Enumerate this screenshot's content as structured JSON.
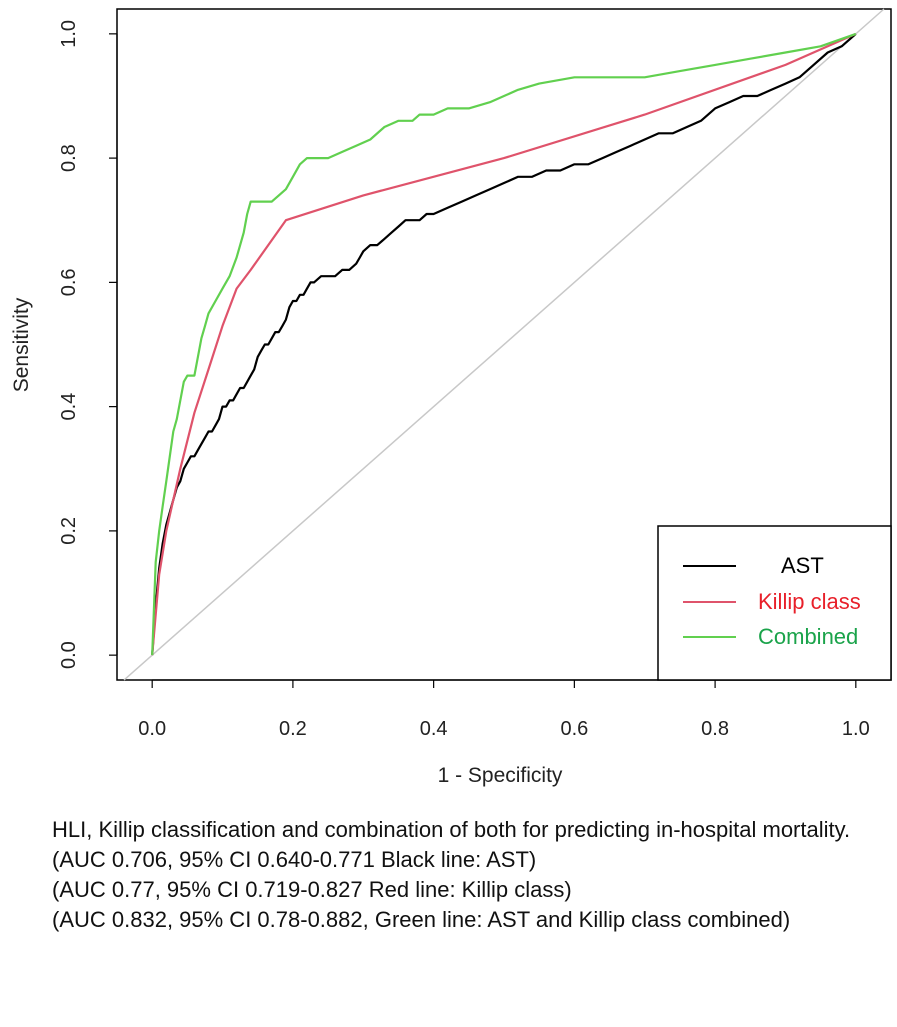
{
  "chart_data": {
    "type": "line",
    "title": "",
    "xlabel": "1 - Specificity",
    "ylabel": "Sensitivity",
    "xlim": [
      -0.05,
      1.05
    ],
    "ylim": [
      -0.04,
      1.04
    ],
    "x_ticks": [
      0.0,
      0.2,
      0.4,
      0.6,
      0.8,
      1.0
    ],
    "y_ticks": [
      0.0,
      0.2,
      0.4,
      0.6,
      0.8,
      1.0
    ],
    "x_tick_labels": [
      "0.0",
      "0.2",
      "0.4",
      "0.6",
      "0.8",
      "1.0"
    ],
    "y_tick_labels": [
      "0.0",
      "0.2",
      "0.4",
      "0.6",
      "0.8",
      "1.0"
    ],
    "reference_line": {
      "x": [
        -0.04,
        1.04
      ],
      "y": [
        -0.04,
        1.04
      ],
      "color": "#c8c8c8"
    },
    "legend": {
      "position": "bottom-right"
    },
    "series": [
      {
        "name": "AST",
        "color": "#000000",
        "label_color": "#000000",
        "x": [
          0.0,
          0.005,
          0.01,
          0.015,
          0.02,
          0.025,
          0.03,
          0.035,
          0.04,
          0.045,
          0.05,
          0.055,
          0.06,
          0.065,
          0.07,
          0.075,
          0.08,
          0.085,
          0.09,
          0.095,
          0.1,
          0.105,
          0.11,
          0.115,
          0.12,
          0.125,
          0.13,
          0.135,
          0.14,
          0.145,
          0.15,
          0.155,
          0.16,
          0.165,
          0.17,
          0.175,
          0.18,
          0.185,
          0.19,
          0.195,
          0.2,
          0.205,
          0.21,
          0.215,
          0.22,
          0.225,
          0.23,
          0.24,
          0.25,
          0.26,
          0.27,
          0.28,
          0.29,
          0.295,
          0.3,
          0.31,
          0.32,
          0.33,
          0.34,
          0.35,
          0.36,
          0.37,
          0.38,
          0.39,
          0.4,
          0.42,
          0.44,
          0.46,
          0.48,
          0.5,
          0.52,
          0.54,
          0.56,
          0.58,
          0.6,
          0.62,
          0.64,
          0.66,
          0.68,
          0.7,
          0.72,
          0.74,
          0.76,
          0.78,
          0.8,
          0.82,
          0.84,
          0.86,
          0.88,
          0.9,
          0.92,
          0.94,
          0.96,
          0.98,
          0.99,
          1.0
        ],
        "y": [
          0.0,
          0.08,
          0.14,
          0.18,
          0.21,
          0.23,
          0.25,
          0.27,
          0.28,
          0.3,
          0.31,
          0.32,
          0.32,
          0.33,
          0.34,
          0.35,
          0.36,
          0.36,
          0.37,
          0.38,
          0.4,
          0.4,
          0.41,
          0.41,
          0.42,
          0.43,
          0.43,
          0.44,
          0.45,
          0.46,
          0.48,
          0.49,
          0.5,
          0.5,
          0.51,
          0.52,
          0.52,
          0.53,
          0.54,
          0.56,
          0.57,
          0.57,
          0.58,
          0.58,
          0.59,
          0.6,
          0.6,
          0.61,
          0.61,
          0.61,
          0.62,
          0.62,
          0.63,
          0.64,
          0.65,
          0.66,
          0.66,
          0.67,
          0.68,
          0.69,
          0.7,
          0.7,
          0.7,
          0.71,
          0.71,
          0.72,
          0.73,
          0.74,
          0.75,
          0.76,
          0.77,
          0.77,
          0.78,
          0.78,
          0.79,
          0.79,
          0.8,
          0.81,
          0.82,
          0.83,
          0.84,
          0.84,
          0.85,
          0.86,
          0.88,
          0.89,
          0.9,
          0.9,
          0.91,
          0.92,
          0.93,
          0.95,
          0.97,
          0.98,
          0.99,
          1.0
        ]
      },
      {
        "name": "Killip class",
        "color": "#df536b",
        "label_color": "#e8202a",
        "x": [
          0.0,
          0.01,
          0.02,
          0.03,
          0.04,
          0.06,
          0.08,
          0.1,
          0.12,
          0.14,
          0.19,
          0.3,
          0.5,
          0.7,
          0.9,
          1.0
        ],
        "y": [
          0.0,
          0.13,
          0.2,
          0.25,
          0.3,
          0.39,
          0.46,
          0.53,
          0.59,
          0.62,
          0.7,
          0.74,
          0.8,
          0.87,
          0.95,
          1.0
        ]
      },
      {
        "name": "Combined",
        "color": "#61d04f",
        "label_color": "#1aa34a",
        "x": [
          0.0,
          0.005,
          0.01,
          0.015,
          0.02,
          0.025,
          0.03,
          0.035,
          0.04,
          0.045,
          0.05,
          0.055,
          0.06,
          0.07,
          0.075,
          0.08,
          0.09,
          0.1,
          0.11,
          0.12,
          0.13,
          0.135,
          0.14,
          0.145,
          0.15,
          0.16,
          0.17,
          0.18,
          0.19,
          0.2,
          0.21,
          0.22,
          0.23,
          0.25,
          0.27,
          0.29,
          0.31,
          0.33,
          0.35,
          0.37,
          0.38,
          0.4,
          0.42,
          0.45,
          0.48,
          0.5,
          0.52,
          0.55,
          0.6,
          0.65,
          0.7,
          0.75,
          0.8,
          0.85,
          0.9,
          0.95,
          1.0
        ],
        "y": [
          0.0,
          0.15,
          0.2,
          0.24,
          0.28,
          0.32,
          0.36,
          0.38,
          0.41,
          0.44,
          0.45,
          0.45,
          0.45,
          0.51,
          0.53,
          0.55,
          0.57,
          0.59,
          0.61,
          0.64,
          0.68,
          0.71,
          0.73,
          0.73,
          0.73,
          0.73,
          0.73,
          0.74,
          0.75,
          0.77,
          0.79,
          0.8,
          0.8,
          0.8,
          0.81,
          0.82,
          0.83,
          0.85,
          0.86,
          0.86,
          0.87,
          0.87,
          0.88,
          0.88,
          0.89,
          0.9,
          0.91,
          0.92,
          0.93,
          0.93,
          0.93,
          0.94,
          0.95,
          0.96,
          0.97,
          0.98,
          1.0
        ]
      }
    ]
  },
  "caption": {
    "line1": "HLI, Killip classification and combination of both for predicting in-hospital mortality.",
    "line2": "(AUC 0.706, 95% CI 0.640-0.771 Black line: AST)",
    "line3": "(AUC 0.77, 95% CI 0.719-0.827 Red line: Killip class)",
    "line4": "(AUC 0.832, 95% CI 0.78-0.882, Green line: AST and Killip class combined)"
  }
}
